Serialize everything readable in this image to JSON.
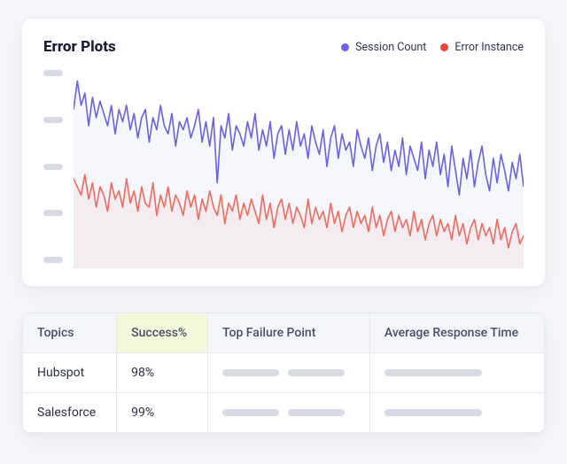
{
  "chart": {
    "title": "Error Plots",
    "type": "line",
    "background_color": "#ffffff",
    "title_fontsize": 17,
    "title_color": "#1a1d3a",
    "xlim": [
      0,
      120
    ],
    "ylim": [
      0,
      100
    ],
    "ytick_count": 5,
    "ytick_placeholder_color": "#d8dbe5",
    "grid": false,
    "legend": {
      "position": "top-right",
      "fontsize": 12.5,
      "text_color": "#303354",
      "items": [
        {
          "label": "Session Count",
          "color": "#6d62e4"
        },
        {
          "label": "Error Instance",
          "color": "#ee4430"
        }
      ]
    },
    "series": [
      {
        "name": "Session Count",
        "stroke": "#6d62e4",
        "stroke_width": 1.6,
        "fill": "#6d62e4",
        "fill_opacity": 0.06,
        "values": [
          78,
          92,
          80,
          86,
          70,
          84,
          74,
          82,
          76,
          70,
          80,
          66,
          78,
          72,
          80,
          68,
          76,
          64,
          74,
          78,
          62,
          74,
          68,
          80,
          70,
          66,
          76,
          60,
          72,
          68,
          74,
          64,
          70,
          78,
          62,
          72,
          60,
          74,
          42,
          70,
          64,
          76,
          58,
          70,
          66,
          60,
          72,
          64,
          76,
          58,
          68,
          60,
          72,
          54,
          66,
          70,
          56,
          68,
          58,
          72,
          60,
          66,
          54,
          70,
          62,
          56,
          68,
          50,
          64,
          70,
          54,
          66,
          58,
          62,
          50,
          68,
          60,
          54,
          64,
          48,
          60,
          66,
          52,
          62,
          48,
          58,
          50,
          64,
          46,
          60,
          54,
          48,
          62,
          44,
          58,
          50,
          62,
          46,
          56,
          40,
          60,
          48,
          36,
          54,
          44,
          58,
          40,
          52,
          60,
          46,
          38,
          54,
          42,
          56,
          48,
          38,
          52,
          44,
          56,
          40
        ]
      },
      {
        "name": "Error Instance",
        "stroke": "#ef6d5f",
        "stroke_width": 1.6,
        "fill": "#ee4430",
        "fill_opacity": 0.05,
        "values": [
          44,
          40,
          36,
          46,
          34,
          42,
          30,
          40,
          36,
          28,
          42,
          34,
          38,
          30,
          44,
          32,
          38,
          28,
          40,
          32,
          30,
          42,
          26,
          36,
          30,
          40,
          28,
          36,
          32,
          26,
          38,
          30,
          36,
          24,
          34,
          28,
          38,
          30,
          26,
          36,
          22,
          32,
          28,
          36,
          24,
          32,
          26,
          34,
          28,
          22,
          36,
          24,
          32,
          20,
          30,
          34,
          24,
          32,
          22,
          30,
          26,
          20,
          34,
          22,
          30,
          24,
          28,
          20,
          32,
          22,
          28,
          18,
          26,
          30,
          20,
          28,
          22,
          26,
          18,
          30,
          20,
          26,
          16,
          24,
          28,
          18,
          26,
          20,
          24,
          16,
          28,
          18,
          24,
          14,
          22,
          26,
          16,
          24,
          18,
          22,
          14,
          26,
          16,
          22,
          12,
          20,
          24,
          14,
          22,
          16,
          20,
          12,
          24,
          14,
          20,
          10,
          18,
          22,
          12,
          16
        ]
      }
    ]
  },
  "table": {
    "header_bg": "#f4f6fb",
    "success_header_bg": "#f2f8d9",
    "border_color": "#e6e8f0",
    "fontsize": 14,
    "header_color": "#4a4e6a",
    "cell_color": "#2a2d45",
    "skeleton_color": "#d8dbe5",
    "columns": [
      "Topics",
      "Success%",
      "Top Failure Point",
      "Average Response Time"
    ],
    "rows": [
      {
        "topic": "Hubspot",
        "success": "98%",
        "tfp_skel_widths": [
          64,
          64
        ],
        "art_skel_widths": [
          110
        ]
      },
      {
        "topic": "Salesforce",
        "success": "99%",
        "tfp_skel_widths": [
          64,
          64
        ],
        "art_skel_widths": [
          110
        ]
      }
    ]
  }
}
